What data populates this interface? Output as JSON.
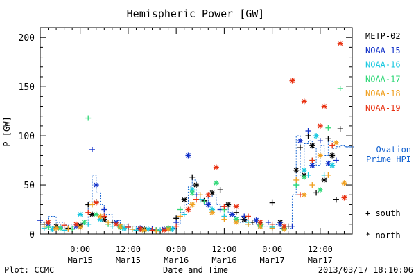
{
  "chart_data": {
    "type": "scatter",
    "title": "Hemispheric Power [GW]",
    "ylabel": "P [GW]",
    "xlabel": "Date and Time",
    "ylim": [
      0,
      210
    ],
    "yticks": [
      0,
      50,
      100,
      150,
      200
    ],
    "xlim_hours": [
      -10,
      68
    ],
    "xticks": [
      {
        "h": 0,
        "l1": "0:00",
        "l2": "Mar15"
      },
      {
        "h": 12,
        "l1": "12:00",
        "l2": "Mar15"
      },
      {
        "h": 24,
        "l1": "0:00",
        "l2": "Mar16"
      },
      {
        "h": 36,
        "l1": "12:00",
        "l2": "Mar16"
      },
      {
        "h": 48,
        "l1": "0:00",
        "l2": "Mar17"
      },
      {
        "h": 60,
        "l1": "12:00",
        "l2": "Mar17"
      }
    ],
    "legend": {
      "placement": "right",
      "entries": [
        "METP-02",
        "NOAA-15",
        "NOAA-16",
        "NOAA-17",
        "NOAA-18",
        "NOAA-19"
      ],
      "colors": [
        "#000000",
        "#1030c8",
        "#18c8e0",
        "#30d878",
        "#f0a020",
        "#e83010"
      ]
    },
    "ovation": {
      "label1": "— Ovation",
      "label2": "Prime HPI",
      "color": "#1060d0"
    },
    "marker_key": {
      "south": "+ south",
      "north": "* north"
    },
    "series": [
      {
        "name": "METP-02",
        "color": "#000000",
        "values": [
          [
            -9,
            10,
            "s"
          ],
          [
            -6,
            8,
            "n"
          ],
          [
            -3,
            6,
            "s"
          ],
          [
            0,
            9,
            "n"
          ],
          [
            2,
            30,
            "s"
          ],
          [
            3,
            20,
            "n"
          ],
          [
            4,
            33,
            "s"
          ],
          [
            6,
            15,
            "n"
          ],
          [
            8,
            12,
            "s"
          ],
          [
            10,
            8,
            "n"
          ],
          [
            13,
            5,
            "s"
          ],
          [
            16,
            5,
            "n"
          ],
          [
            19,
            4,
            "s"
          ],
          [
            22,
            6,
            "n"
          ],
          [
            24,
            16,
            "s"
          ],
          [
            26,
            35,
            "n"
          ],
          [
            28,
            58,
            "s"
          ],
          [
            29,
            50,
            "n"
          ],
          [
            31,
            34,
            "s"
          ],
          [
            33,
            42,
            "n"
          ],
          [
            35,
            45,
            "s"
          ],
          [
            37,
            30,
            "n"
          ],
          [
            39,
            22,
            "s"
          ],
          [
            41,
            15,
            "n"
          ],
          [
            43,
            12,
            "s"
          ],
          [
            45,
            10,
            "n"
          ],
          [
            48,
            32,
            "s"
          ],
          [
            50,
            12,
            "n"
          ],
          [
            52,
            8,
            "s"
          ],
          [
            54,
            65,
            "n"
          ],
          [
            55,
            88,
            "s"
          ],
          [
            56,
            60,
            "n"
          ],
          [
            57,
            100,
            "s"
          ],
          [
            58,
            90,
            "n"
          ],
          [
            59,
            42,
            "s"
          ],
          [
            61,
            55,
            "n"
          ],
          [
            62,
            97,
            "s"
          ],
          [
            63,
            80,
            "n"
          ],
          [
            64,
            35,
            "s"
          ],
          [
            65,
            107,
            "s"
          ]
        ]
      },
      {
        "name": "NOAA-15",
        "color": "#1030c8",
        "values": [
          [
            -10,
            14,
            "s"
          ],
          [
            -8,
            10,
            "n"
          ],
          [
            -5,
            7,
            "s"
          ],
          [
            -1,
            8,
            "n"
          ],
          [
            3,
            86,
            "s"
          ],
          [
            4,
            50,
            "n"
          ],
          [
            6,
            25,
            "s"
          ],
          [
            9,
            12,
            "n"
          ],
          [
            12,
            8,
            "s"
          ],
          [
            15,
            6,
            "n"
          ],
          [
            18,
            5,
            "s"
          ],
          [
            21,
            5,
            "n"
          ],
          [
            24,
            12,
            "s"
          ],
          [
            27,
            80,
            "n"
          ],
          [
            29,
            40,
            "s"
          ],
          [
            32,
            30,
            "n"
          ],
          [
            35,
            25,
            "s"
          ],
          [
            38,
            20,
            "n"
          ],
          [
            41,
            18,
            "s"
          ],
          [
            44,
            14,
            "n"
          ],
          [
            47,
            12,
            "s"
          ],
          [
            50,
            10,
            "n"
          ],
          [
            53,
            8,
            "s"
          ],
          [
            55,
            95,
            "n"
          ],
          [
            57,
            105,
            "s"
          ],
          [
            58,
            70,
            "n"
          ],
          [
            60,
            95,
            "s"
          ],
          [
            62,
            72,
            "n"
          ],
          [
            64,
            75,
            "s"
          ]
        ]
      },
      {
        "name": "NOAA-16",
        "color": "#18c8e0",
        "values": [
          [
            -9,
            6,
            "s"
          ],
          [
            -7,
            5,
            "n"
          ],
          [
            -4,
            4,
            "s"
          ],
          [
            0,
            20,
            "n"
          ],
          [
            2,
            10,
            "s"
          ],
          [
            5,
            15,
            "n"
          ],
          [
            8,
            8,
            "s"
          ],
          [
            11,
            6,
            "n"
          ],
          [
            14,
            4,
            "s"
          ],
          [
            17,
            5,
            "n"
          ],
          [
            20,
            4,
            "s"
          ],
          [
            23,
            5,
            "n"
          ],
          [
            26,
            20,
            "s"
          ],
          [
            28,
            45,
            "n"
          ],
          [
            30,
            35,
            "s"
          ],
          [
            33,
            25,
            "n"
          ],
          [
            36,
            18,
            "s"
          ],
          [
            39,
            15,
            "n"
          ],
          [
            42,
            12,
            "s"
          ],
          [
            45,
            8,
            "n"
          ],
          [
            48,
            7,
            "s"
          ],
          [
            51,
            6,
            "n"
          ],
          [
            54,
            50,
            "s"
          ],
          [
            56,
            65,
            "n"
          ],
          [
            57,
            60,
            "s"
          ],
          [
            59,
            100,
            "n"
          ],
          [
            61,
            60,
            "s"
          ],
          [
            63,
            70,
            "n"
          ]
        ]
      },
      {
        "name": "NOAA-17",
        "color": "#30d878",
        "values": [
          [
            -8,
            7,
            "s"
          ],
          [
            -5,
            6,
            "n"
          ],
          [
            -2,
            5,
            "s"
          ],
          [
            1,
            12,
            "n"
          ],
          [
            2,
            118,
            "s"
          ],
          [
            4,
            20,
            "n"
          ],
          [
            7,
            10,
            "s"
          ],
          [
            10,
            7,
            "n"
          ],
          [
            13,
            5,
            "s"
          ],
          [
            16,
            4,
            "n"
          ],
          [
            19,
            4,
            "s"
          ],
          [
            22,
            6,
            "n"
          ],
          [
            25,
            25,
            "s"
          ],
          [
            28,
            42,
            "n"
          ],
          [
            31,
            33,
            "s"
          ],
          [
            34,
            52,
            "n"
          ],
          [
            36,
            25,
            "s"
          ],
          [
            39,
            15,
            "n"
          ],
          [
            42,
            10,
            "s"
          ],
          [
            45,
            9,
            "n"
          ],
          [
            48,
            8,
            "s"
          ],
          [
            51,
            6,
            "n"
          ],
          [
            54,
            50,
            "s"
          ],
          [
            56,
            58,
            "n"
          ],
          [
            58,
            75,
            "s"
          ],
          [
            60,
            45,
            "n"
          ],
          [
            62,
            108,
            "s"
          ],
          [
            65,
            148,
            "s"
          ]
        ]
      },
      {
        "name": "NOAA-18",
        "color": "#f0a020",
        "values": [
          [
            -9,
            8,
            "s"
          ],
          [
            -6,
            6,
            "n"
          ],
          [
            -3,
            5,
            "s"
          ],
          [
            0,
            7,
            "n"
          ],
          [
            3,
            30,
            "s"
          ],
          [
            5,
            18,
            "n"
          ],
          [
            7,
            12,
            "s"
          ],
          [
            10,
            8,
            "n"
          ],
          [
            13,
            5,
            "s"
          ],
          [
            16,
            4,
            "n"
          ],
          [
            19,
            3,
            "s"
          ],
          [
            22,
            5,
            "n"
          ],
          [
            25,
            18,
            "s"
          ],
          [
            28,
            30,
            "n"
          ],
          [
            30,
            40,
            "s"
          ],
          [
            33,
            22,
            "n"
          ],
          [
            36,
            15,
            "s"
          ],
          [
            39,
            12,
            "n"
          ],
          [
            42,
            10,
            "s"
          ],
          [
            45,
            8,
            "n"
          ],
          [
            48,
            6,
            "s"
          ],
          [
            51,
            5,
            "n"
          ],
          [
            54,
            55,
            "s"
          ],
          [
            56,
            40,
            "n"
          ],
          [
            58,
            50,
            "s"
          ],
          [
            60,
            80,
            "n"
          ],
          [
            62,
            60,
            "s"
          ],
          [
            64,
            93,
            "n"
          ],
          [
            66,
            52,
            "n"
          ]
        ]
      },
      {
        "name": "NOAA-19",
        "color": "#e83010",
        "values": [
          [
            -8,
            12,
            "n"
          ],
          [
            -4,
            9,
            "s"
          ],
          [
            -1,
            10,
            "n"
          ],
          [
            2,
            22,
            "s"
          ],
          [
            4,
            32,
            "n"
          ],
          [
            6,
            18,
            "s"
          ],
          [
            9,
            10,
            "n"
          ],
          [
            12,
            7,
            "s"
          ],
          [
            15,
            5,
            "n"
          ],
          [
            18,
            4,
            "s"
          ],
          [
            21,
            4,
            "n"
          ],
          [
            24,
            8,
            "s"
          ],
          [
            27,
            25,
            "n"
          ],
          [
            29,
            35,
            "s"
          ],
          [
            32,
            40,
            "n"
          ],
          [
            34,
            68,
            "n"
          ],
          [
            36,
            28,
            "s"
          ],
          [
            39,
            28,
            "n"
          ],
          [
            42,
            18,
            "s"
          ],
          [
            45,
            12,
            "n"
          ],
          [
            48,
            10,
            "s"
          ],
          [
            51,
            8,
            "n"
          ],
          [
            53,
            156,
            "n"
          ],
          [
            55,
            40,
            "s"
          ],
          [
            56,
            135,
            "n"
          ],
          [
            58,
            75,
            "s"
          ],
          [
            60,
            110,
            "n"
          ],
          [
            61,
            130,
            "n"
          ],
          [
            63,
            90,
            "s"
          ],
          [
            65,
            194,
            "n"
          ],
          [
            66,
            37,
            "n"
          ]
        ]
      }
    ],
    "hpi_steps": [
      [
        -10,
        12
      ],
      [
        -8,
        18
      ],
      [
        -6,
        12
      ],
      [
        -4,
        10
      ],
      [
        -2,
        8
      ],
      [
        0,
        10
      ],
      [
        2,
        33
      ],
      [
        3,
        60
      ],
      [
        4,
        42
      ],
      [
        5,
        30
      ],
      [
        6,
        20
      ],
      [
        8,
        14
      ],
      [
        10,
        10
      ],
      [
        12,
        8
      ],
      [
        14,
        6
      ],
      [
        16,
        6
      ],
      [
        18,
        5
      ],
      [
        20,
        5
      ],
      [
        22,
        6
      ],
      [
        24,
        10
      ],
      [
        25,
        22
      ],
      [
        26,
        30
      ],
      [
        27,
        48
      ],
      [
        28,
        55
      ],
      [
        29,
        42
      ],
      [
        30,
        35
      ],
      [
        31,
        30
      ],
      [
        32,
        38
      ],
      [
        33,
        40
      ],
      [
        34,
        30
      ],
      [
        35,
        28
      ],
      [
        36,
        30
      ],
      [
        37,
        22
      ],
      [
        38,
        18
      ],
      [
        39,
        15
      ],
      [
        40,
        12
      ],
      [
        41,
        14
      ],
      [
        42,
        12
      ],
      [
        43,
        10
      ],
      [
        44,
        12
      ],
      [
        45,
        10
      ],
      [
        46,
        8
      ],
      [
        47,
        8
      ],
      [
        48,
        10
      ],
      [
        49,
        8
      ],
      [
        50,
        6
      ],
      [
        51,
        8
      ],
      [
        52,
        6
      ],
      [
        53,
        40
      ],
      [
        54,
        100
      ],
      [
        55,
        60
      ],
      [
        56,
        92
      ],
      [
        57,
        95
      ],
      [
        58,
        88
      ],
      [
        59,
        70
      ],
      [
        60,
        90
      ],
      [
        61,
        80
      ],
      [
        62,
        95
      ],
      [
        63,
        87
      ],
      [
        64,
        89
      ],
      [
        65,
        90
      ],
      [
        66,
        89
      ],
      [
        68,
        89
      ]
    ]
  },
  "footer": {
    "plot_credit": "Plot: CCMC",
    "axis_title": "Date and Time",
    "timestamp": "2013/03/17 18:10:06"
  }
}
